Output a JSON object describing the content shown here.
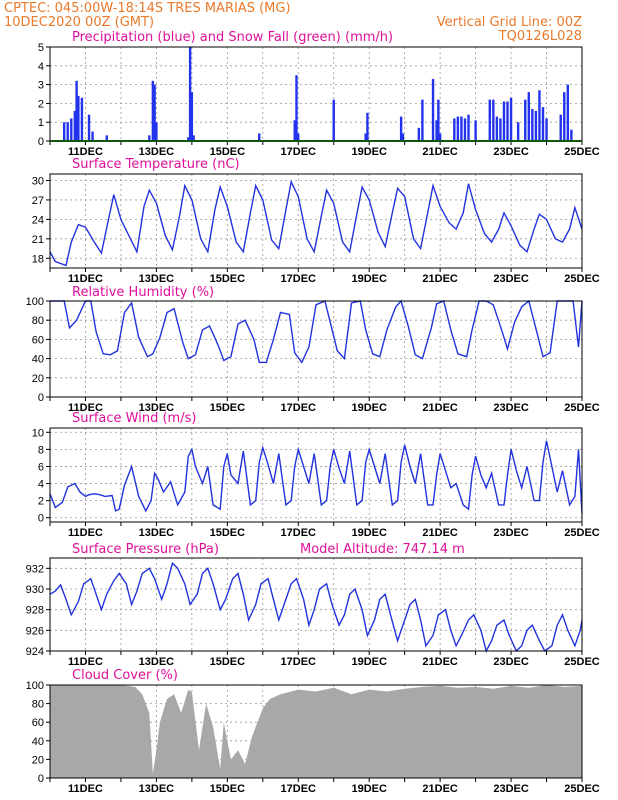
{
  "header": {
    "line1": "CPTEC:   045:00W-18:14S   TRES MARIAS (MG)",
    "line2": "10DEC2020 00Z (GMT)",
    "grid_note": "Vertical Grid Line: 00Z",
    "code": "TQ0126L028"
  },
  "colors": {
    "header": "#e87a2c",
    "title": "#e0109a",
    "line": "#2233dd",
    "bar": "#2233ee",
    "snow": "#22aa22",
    "cloud": "#a8a8a8"
  },
  "x_axis": {
    "start_day": 10,
    "end_day": 25,
    "tick_labels": [
      "11DEC",
      "13DEC",
      "15DEC",
      "17DEC",
      "19DEC",
      "21DEC",
      "23DEC",
      "25DEC"
    ],
    "tick_days": [
      11,
      13,
      15,
      17,
      19,
      21,
      23,
      25
    ]
  },
  "chart_data": [
    {
      "type": "bar",
      "title": "Precipitation (blue) and Snow Fall (green) (mm/h)",
      "ylim": [
        0,
        5
      ],
      "yticks": [
        "0",
        "1",
        "2",
        "3",
        "4",
        "5"
      ],
      "series": [
        {
          "name": "Precipitation",
          "color": "#2233ee",
          "x": [
            10.4,
            10.5,
            10.6,
            10.7,
            10.75,
            10.8,
            10.9,
            11.1,
            11.2,
            11.6,
            12.8,
            12.9,
            12.95,
            13.0,
            13.9,
            13.95,
            14.0,
            14.05,
            15.9,
            16.9,
            16.95,
            17.0,
            18.0,
            18.9,
            18.95,
            19.9,
            19.95,
            20.4,
            20.5,
            20.8,
            20.9,
            20.95,
            21.0,
            21.4,
            21.5,
            21.6,
            21.7,
            21.8,
            22.0,
            22.4,
            22.5,
            22.6,
            22.7,
            22.8,
            22.9,
            23.0,
            23.2,
            23.4,
            23.5,
            23.6,
            23.7,
            23.8,
            23.9,
            24.0,
            24.4,
            24.5,
            24.6,
            24.7
          ],
          "values": [
            1.0,
            1.0,
            1.2,
            1.6,
            3.2,
            2.4,
            2.3,
            1.4,
            0.5,
            0.3,
            0.3,
            3.2,
            3.0,
            1.0,
            0.2,
            5.0,
            2.6,
            0.3,
            0.4,
            1.1,
            3.5,
            0.4,
            2.2,
            0.4,
            1.5,
            1.3,
            0.4,
            0.7,
            2.2,
            3.3,
            1.1,
            2.2,
            0.4,
            1.2,
            1.3,
            1.3,
            1.2,
            1.4,
            1.1,
            2.2,
            2.2,
            1.3,
            1.2,
            2.1,
            2.1,
            2.3,
            1.0,
            2.2,
            2.6,
            1.7,
            1.6,
            2.7,
            1.8,
            1.2,
            1.4,
            2.6,
            3.0,
            0.6
          ]
        },
        {
          "name": "Snow Fall",
          "color": "#22aa22",
          "x": [
            10.0,
            25.0
          ],
          "values": [
            0,
            0
          ]
        }
      ]
    },
    {
      "type": "line",
      "title": "Surface Temperature (nC)",
      "ylim": [
        16.5,
        31
      ],
      "yticks": [
        "18",
        "21",
        "24",
        "27",
        "30"
      ],
      "x": [
        10.0,
        10.15,
        10.3,
        10.45,
        10.6,
        10.8,
        11.0,
        11.25,
        11.45,
        11.65,
        11.8,
        12.0,
        12.25,
        12.45,
        12.65,
        12.8,
        13.0,
        13.25,
        13.45,
        13.65,
        13.8,
        14.0,
        14.25,
        14.45,
        14.65,
        14.8,
        15.0,
        15.25,
        15.45,
        15.65,
        15.8,
        16.0,
        16.25,
        16.45,
        16.65,
        16.8,
        17.0,
        17.25,
        17.45,
        17.65,
        17.8,
        18.0,
        18.25,
        18.45,
        18.65,
        18.8,
        19.0,
        19.25,
        19.45,
        19.65,
        19.8,
        20.0,
        20.25,
        20.45,
        20.65,
        20.8,
        21.0,
        21.25,
        21.45,
        21.65,
        21.8,
        22.0,
        22.25,
        22.45,
        22.65,
        22.8,
        23.0,
        23.25,
        23.45,
        23.65,
        23.8,
        24.0,
        24.25,
        24.45,
        24.65,
        24.8,
        25.0
      ],
      "values": [
        19.0,
        17.5,
        17.2,
        16.9,
        20.5,
        23.2,
        22.8,
        20.5,
        18.8,
        24.0,
        27.8,
        24.0,
        21.2,
        19.0,
        26.0,
        28.5,
        26.5,
        21.5,
        19.3,
        24.5,
        29.2,
        27.0,
        21.0,
        19.0,
        25.5,
        29.0,
        26.0,
        20.5,
        19.0,
        25.0,
        29.2,
        27.0,
        20.8,
        19.5,
        25.5,
        29.8,
        27.5,
        21.0,
        19.0,
        24.5,
        28.5,
        26.5,
        20.5,
        19.0,
        24.8,
        29.0,
        27.0,
        22.0,
        19.8,
        25.0,
        28.8,
        27.5,
        21.0,
        19.5,
        25.0,
        29.2,
        26.0,
        23.5,
        22.5,
        25.0,
        29.5,
        25.5,
        21.8,
        20.5,
        22.5,
        25.0,
        23.0,
        20.0,
        19.0,
        22.5,
        24.8,
        24.0,
        21.0,
        20.5,
        22.5,
        25.8,
        22.5
      ]
    },
    {
      "type": "line",
      "title": "Relative Humidity (%)",
      "ylim": [
        0,
        100
      ],
      "yticks": [
        "0",
        "20",
        "40",
        "60",
        "80",
        "100"
      ],
      "x": [
        10.0,
        10.2,
        10.4,
        10.55,
        10.75,
        11.0,
        11.15,
        11.3,
        11.5,
        11.7,
        11.9,
        12.1,
        12.3,
        12.5,
        12.75,
        12.9,
        13.1,
        13.3,
        13.5,
        13.75,
        13.9,
        14.1,
        14.3,
        14.5,
        14.75,
        14.9,
        15.1,
        15.3,
        15.5,
        15.75,
        15.9,
        16.1,
        16.3,
        16.5,
        16.75,
        16.9,
        17.1,
        17.3,
        17.5,
        17.75,
        17.9,
        18.1,
        18.3,
        18.5,
        18.75,
        18.9,
        19.1,
        19.3,
        19.5,
        19.75,
        19.9,
        20.1,
        20.3,
        20.5,
        20.75,
        20.9,
        21.1,
        21.3,
        21.5,
        21.75,
        21.9,
        22.1,
        22.3,
        22.5,
        22.75,
        22.9,
        23.1,
        23.3,
        23.5,
        23.75,
        23.9,
        24.1,
        24.3,
        24.5,
        24.75,
        24.9,
        25.0
      ],
      "values": [
        100,
        100,
        100,
        72,
        80,
        100,
        100,
        68,
        45,
        44,
        48,
        88,
        98,
        62,
        42,
        45,
        62,
        88,
        92,
        56,
        40,
        44,
        70,
        74,
        53,
        38,
        42,
        76,
        80,
        60,
        36,
        36,
        60,
        88,
        86,
        46,
        36,
        52,
        96,
        100,
        78,
        48,
        40,
        98,
        100,
        70,
        45,
        42,
        70,
        94,
        100,
        74,
        44,
        40,
        72,
        97,
        100,
        70,
        45,
        42,
        70,
        100,
        100,
        96,
        68,
        50,
        78,
        94,
        100,
        64,
        42,
        46,
        100,
        100,
        100,
        52,
        100
      ]
    },
    {
      "type": "line",
      "title": "Surface Wind (m/s)",
      "ylim": [
        -0.5,
        10.5
      ],
      "yticks": [
        "0",
        "2",
        "4",
        "6",
        "8",
        "10"
      ],
      "x": [
        10.0,
        10.15,
        10.35,
        10.5,
        10.7,
        10.85,
        11.0,
        11.1,
        11.25,
        11.4,
        11.55,
        11.75,
        11.85,
        11.95,
        12.1,
        12.3,
        12.5,
        12.7,
        12.85,
        12.95,
        13.05,
        13.2,
        13.4,
        13.6,
        13.8,
        13.9,
        14.0,
        14.1,
        14.3,
        14.45,
        14.6,
        14.8,
        14.9,
        15.0,
        15.1,
        15.3,
        15.45,
        15.65,
        15.8,
        15.9,
        16.0,
        16.15,
        16.3,
        16.45,
        16.65,
        16.8,
        16.9,
        17.0,
        17.15,
        17.3,
        17.45,
        17.65,
        17.8,
        17.9,
        18.0,
        18.15,
        18.3,
        18.45,
        18.65,
        18.8,
        18.9,
        19.0,
        19.15,
        19.3,
        19.45,
        19.65,
        19.8,
        19.9,
        20.0,
        20.15,
        20.3,
        20.45,
        20.65,
        20.8,
        20.9,
        21.0,
        21.15,
        21.3,
        21.45,
        21.65,
        21.8,
        21.9,
        22.0,
        22.15,
        22.3,
        22.45,
        22.65,
        22.8,
        22.9,
        23.0,
        23.15,
        23.3,
        23.45,
        23.65,
        23.8,
        23.9,
        24.0,
        24.15,
        24.3,
        24.45,
        24.65,
        24.8,
        24.9,
        25.0
      ],
      "values": [
        2.8,
        1.2,
        1.8,
        3.6,
        4.0,
        3.0,
        2.5,
        2.7,
        2.8,
        2.7,
        2.5,
        2.6,
        0.8,
        1.0,
        3.8,
        6.0,
        2.5,
        0.8,
        2.0,
        5.2,
        4.5,
        3.0,
        4.2,
        1.5,
        3.0,
        7.2,
        8.0,
        6.0,
        4.0,
        6.0,
        1.5,
        1.0,
        6.0,
        7.5,
        5.0,
        4.0,
        7.8,
        1.5,
        2.0,
        6.5,
        8.2,
        6.2,
        4.0,
        7.5,
        1.5,
        2.0,
        6.0,
        8.0,
        6.0,
        4.0,
        7.5,
        1.5,
        2.0,
        6.0,
        8.0,
        5.8,
        4.0,
        7.8,
        1.5,
        2.0,
        6.5,
        8.0,
        6.0,
        4.0,
        7.5,
        1.5,
        2.0,
        6.5,
        8.5,
        6.0,
        4.0,
        7.5,
        1.5,
        1.5,
        5.0,
        7.5,
        5.5,
        3.5,
        4.0,
        1.5,
        1.0,
        5.0,
        7.2,
        5.0,
        3.5,
        5.2,
        1.5,
        1.5,
        5.0,
        8.0,
        5.5,
        3.5,
        6.0,
        2.0,
        2.0,
        6.5,
        9.0,
        6.0,
        3.0,
        5.5,
        1.5,
        2.5,
        8.0,
        0.5
      ]
    },
    {
      "type": "line",
      "title": "Surface Pressure (hPa)",
      "annotation": "Model Altitude: 747.14  m",
      "ylim": [
        924,
        933
      ],
      "yticks": [
        "924",
        "926",
        "928",
        "930",
        "932"
      ],
      "x": [
        10.0,
        10.15,
        10.3,
        10.45,
        10.6,
        10.8,
        10.95,
        11.15,
        11.3,
        11.45,
        11.6,
        11.8,
        11.95,
        12.15,
        12.3,
        12.45,
        12.6,
        12.8,
        12.95,
        13.15,
        13.3,
        13.45,
        13.6,
        13.8,
        13.95,
        14.15,
        14.3,
        14.45,
        14.6,
        14.8,
        14.95,
        15.15,
        15.3,
        15.45,
        15.6,
        15.8,
        15.95,
        16.15,
        16.3,
        16.45,
        16.6,
        16.8,
        16.95,
        17.15,
        17.3,
        17.45,
        17.6,
        17.8,
        17.95,
        18.15,
        18.3,
        18.45,
        18.6,
        18.8,
        18.95,
        19.15,
        19.3,
        19.45,
        19.6,
        19.8,
        19.95,
        20.15,
        20.3,
        20.45,
        20.6,
        20.8,
        20.95,
        21.15,
        21.3,
        21.45,
        21.6,
        21.8,
        21.95,
        22.15,
        22.3,
        22.45,
        22.6,
        22.8,
        22.95,
        23.15,
        23.3,
        23.45,
        23.6,
        23.8,
        23.95,
        24.15,
        24.3,
        24.45,
        24.6,
        24.8,
        24.95,
        25.0
      ],
      "values": [
        929.5,
        929.8,
        930.4,
        929.0,
        927.5,
        928.8,
        930.5,
        931.0,
        929.5,
        928.0,
        929.5,
        930.8,
        931.5,
        930.5,
        928.5,
        929.8,
        931.5,
        932.0,
        931.0,
        929.0,
        930.5,
        932.5,
        932.0,
        930.5,
        928.5,
        929.5,
        931.5,
        932.0,
        930.5,
        928.0,
        929.0,
        931.0,
        931.5,
        929.5,
        927.0,
        928.5,
        930.5,
        931.0,
        929.0,
        927.0,
        928.5,
        930.5,
        931.0,
        929.0,
        926.5,
        928.0,
        930.0,
        930.5,
        928.5,
        926.5,
        927.5,
        929.5,
        930.0,
        928.0,
        925.5,
        927.0,
        929.0,
        929.5,
        927.5,
        925.0,
        926.5,
        928.5,
        929.0,
        927.0,
        924.5,
        925.5,
        927.5,
        928.0,
        926.0,
        924.5,
        925.5,
        927.0,
        927.5,
        926.0,
        924.0,
        925.0,
        926.5,
        927.0,
        925.5,
        924.0,
        924.5,
        926.0,
        926.5,
        925.0,
        924.0,
        924.5,
        926.5,
        927.5,
        926.0,
        924.5,
        926.0,
        927.0
      ]
    },
    {
      "type": "area",
      "title": "Cloud Cover (%)",
      "ylim": [
        0,
        100
      ],
      "yticks": [
        "0",
        "20",
        "40",
        "60",
        "80",
        "100"
      ],
      "x": [
        10.0,
        10.5,
        11.0,
        11.5,
        12.0,
        12.4,
        12.6,
        12.8,
        12.9,
        13.0,
        13.1,
        13.3,
        13.5,
        13.7,
        13.9,
        14.0,
        14.2,
        14.4,
        14.6,
        14.8,
        14.9,
        15.0,
        15.1,
        15.3,
        15.5,
        15.7,
        15.9,
        16.0,
        16.2,
        16.5,
        17.0,
        17.5,
        18.0,
        18.5,
        19.0,
        19.5,
        20.0,
        20.5,
        21.0,
        21.5,
        22.0,
        22.5,
        23.0,
        23.5,
        24.0,
        24.5,
        25.0
      ],
      "values": [
        100,
        100,
        100,
        100,
        100,
        98,
        90,
        70,
        5,
        30,
        60,
        85,
        90,
        70,
        95,
        92,
        30,
        80,
        55,
        10,
        60,
        40,
        20,
        30,
        15,
        45,
        65,
        75,
        85,
        90,
        95,
        93,
        97,
        90,
        95,
        93,
        96,
        98,
        99,
        97,
        98,
        96,
        99,
        97,
        100,
        98,
        99
      ]
    }
  ],
  "panel_titles": {
    "precip": "Precipitation (blue) and Snow Fall (green) (mm/h)",
    "temp": "Surface Temperature (nC)",
    "rh": "Relative Humidity (%)",
    "wind": "Surface Wind (m/s)",
    "pressure": "Surface Pressure (hPa)",
    "altitude": "Model Altitude: 747.14  m",
    "cloud": "Cloud Cover (%)"
  }
}
